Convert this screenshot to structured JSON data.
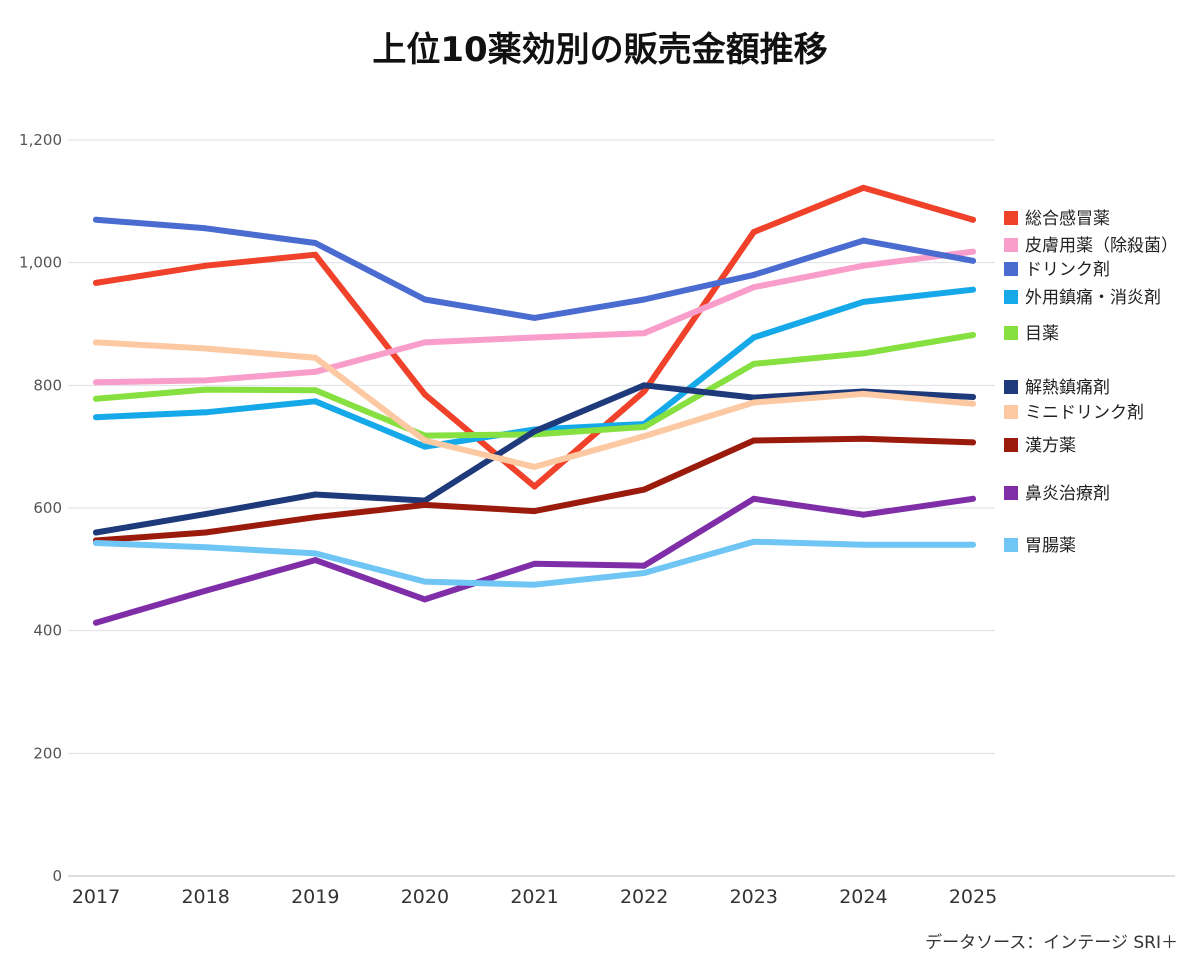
{
  "chart_data": {
    "type": "line",
    "title": "上位10薬効別の販売金額推移",
    "xlabel": "",
    "ylabel": "",
    "x": [
      "2017",
      "2018",
      "2019",
      "2020",
      "2021",
      "2022",
      "2023",
      "2024",
      "2025"
    ],
    "ylim": [
      0,
      1200
    ],
    "yticks": [
      0,
      200,
      400,
      600,
      800,
      1000,
      1200
    ],
    "ytick_labels": [
      "0",
      "200",
      "400",
      "600",
      "800",
      "1,000",
      "1,200"
    ],
    "grid": true,
    "legend_position": "right",
    "series": [
      {
        "name": "総合感冒薬",
        "color": "#f0412a",
        "values": [
          967,
          995,
          1013,
          785,
          635,
          790,
          1050,
          1122,
          1070
        ]
      },
      {
        "name": "皮膚用薬（除殺菌）",
        "color": "#f99dcb",
        "values": [
          805,
          808,
          822,
          870,
          878,
          885,
          960,
          995,
          1018
        ]
      },
      {
        "name": "ドリンク剤",
        "color": "#4a6bd0",
        "values": [
          1070,
          1056,
          1032,
          940,
          910,
          940,
          980,
          1036,
          1003
        ]
      },
      {
        "name": "外用鎮痛・消炎剤",
        "color": "#16a9ea",
        "values": [
          748,
          756,
          774,
          700,
          728,
          737,
          878,
          936,
          956
        ]
      },
      {
        "name": "目薬",
        "color": "#86e040",
        "values": [
          778,
          793,
          792,
          718,
          720,
          732,
          835,
          852,
          882
        ]
      },
      {
        "name": "解熱鎮痛剤",
        "color": "#1e3a7a",
        "values": [
          560,
          590,
          622,
          612,
          725,
          800,
          780,
          790,
          781
        ]
      },
      {
        "name": "ミニドリンク剤",
        "color": "#fcc9a3",
        "values": [
          870,
          860,
          845,
          710,
          667,
          717,
          772,
          786,
          770
        ]
      },
      {
        "name": "漢方薬",
        "color": "#9a1a0c",
        "values": [
          547,
          560,
          585,
          605,
          595,
          630,
          710,
          713,
          707
        ]
      },
      {
        "name": "鼻炎治療剤",
        "color": "#7f2ea8",
        "values": [
          413,
          465,
          515,
          451,
          509,
          506,
          615,
          589,
          615
        ]
      },
      {
        "name": "胃腸薬",
        "color": "#6fc5f4",
        "values": [
          543,
          536,
          526,
          480,
          475,
          494,
          545,
          540,
          540
        ]
      }
    ]
  },
  "source": "データソース：インテージ SRI＋"
}
